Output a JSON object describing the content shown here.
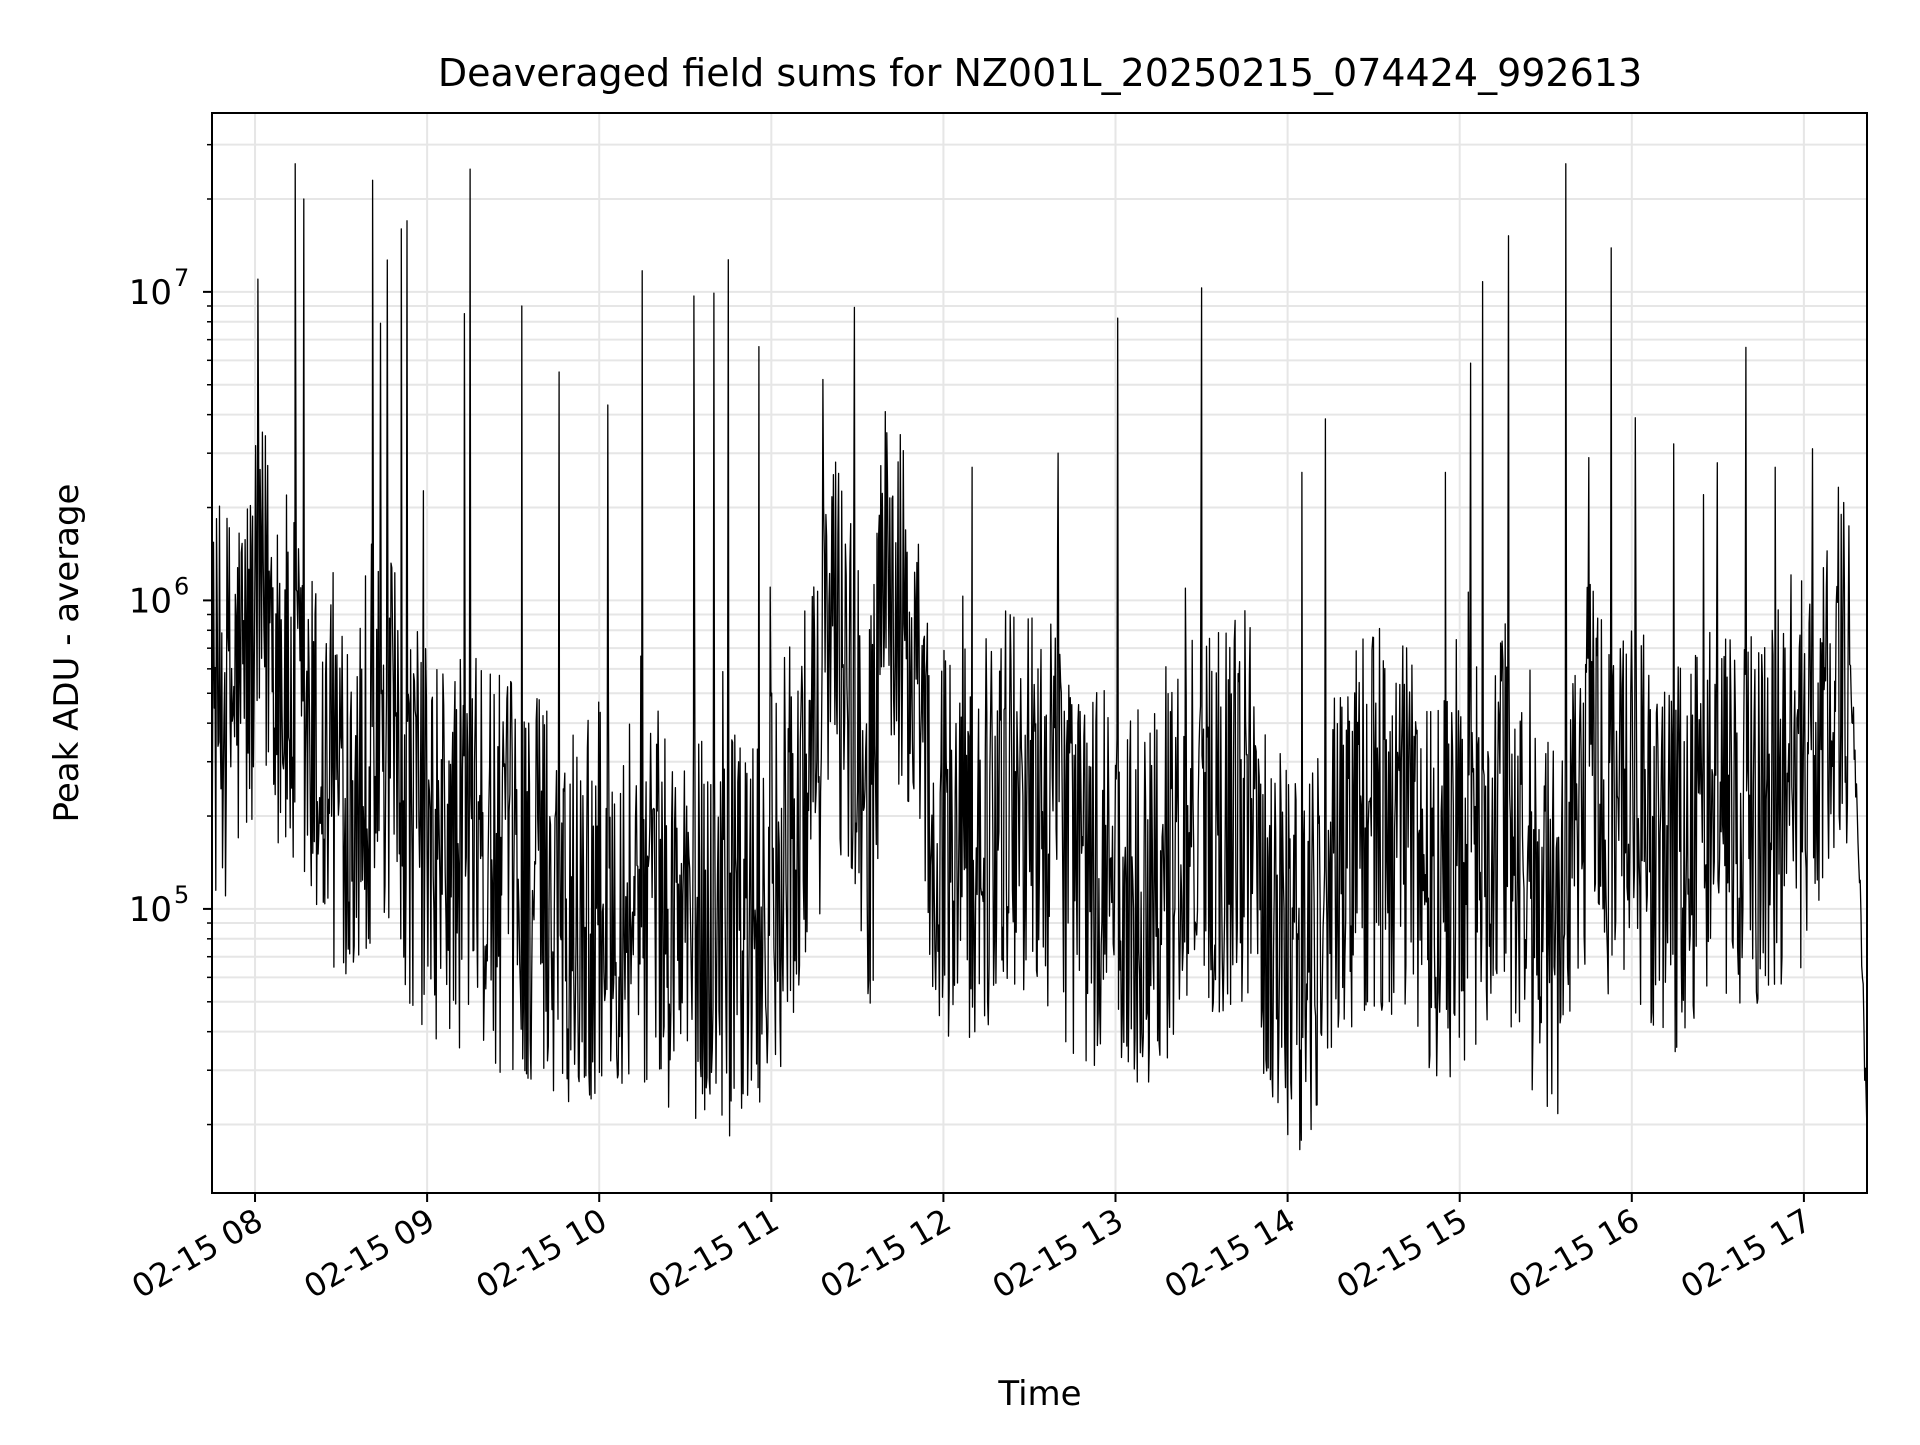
{
  "chart_data": {
    "type": "line",
    "title": "Deaveraged field sums for NZ001L_20250215_074424_992613",
    "xlabel": "Time",
    "ylabel": "Peak ADU - average",
    "xlim": [
      "2025-02-15 07:45",
      "2025-02-15 17:22"
    ],
    "ylim": [
      12000,
      38000000
    ],
    "yscale": "log",
    "grid": true,
    "grid_color": "#e6e6e6",
    "line_color": "#000000",
    "x_ticks": [
      "2025-02-15 08:00",
      "2025-02-15 09:00",
      "2025-02-15 10:00",
      "2025-02-15 11:00",
      "2025-02-15 12:00",
      "2025-02-15 13:00",
      "2025-02-15 14:00",
      "2025-02-15 15:00",
      "2025-02-15 16:00",
      "2025-02-15 17:00"
    ],
    "x_tick_labels": [
      "02-15 08",
      "02-15 09",
      "02-15 10",
      "02-15 11",
      "02-15 12",
      "02-15 13",
      "02-15 14",
      "02-15 15",
      "02-15 16",
      "02-15 17"
    ],
    "y_ticks": [
      100000,
      1000000,
      10000000
    ],
    "y_tick_labels": [
      "10",
      "10",
      "10"
    ],
    "y_tick_exponents": [
      "5",
      "6",
      "7"
    ],
    "series": [
      {
        "x": [
          "2025-02-15 07:45",
          "2025-02-15 07:52",
          "2025-02-15 08:00",
          "2025-02-15 08:05",
          "2025-02-15 08:12",
          "2025-02-15 08:20",
          "2025-02-15 08:28",
          "2025-02-15 08:36",
          "2025-02-15 08:45",
          "2025-02-15 08:55",
          "2025-02-15 09:05",
          "2025-02-15 09:15",
          "2025-02-15 09:25",
          "2025-02-15 09:35",
          "2025-02-15 09:45",
          "2025-02-15 09:55",
          "2025-02-15 10:05",
          "2025-02-15 10:15",
          "2025-02-15 10:25",
          "2025-02-15 10:35",
          "2025-02-15 10:45",
          "2025-02-15 10:55",
          "2025-02-15 11:05",
          "2025-02-15 11:15",
          "2025-02-15 11:20",
          "2025-02-15 11:28",
          "2025-02-15 11:35",
          "2025-02-15 11:40",
          "2025-02-15 11:48",
          "2025-02-15 11:55",
          "2025-02-15 12:05",
          "2025-02-15 12:15",
          "2025-02-15 12:25",
          "2025-02-15 12:35",
          "2025-02-15 12:45",
          "2025-02-15 12:55",
          "2025-02-15 13:05",
          "2025-02-15 13:15",
          "2025-02-15 13:25",
          "2025-02-15 13:35",
          "2025-02-15 13:45",
          "2025-02-15 13:55",
          "2025-02-15 14:05",
          "2025-02-15 14:15",
          "2025-02-15 14:25",
          "2025-02-15 14:35",
          "2025-02-15 14:45",
          "2025-02-15 14:55",
          "2025-02-15 15:05",
          "2025-02-15 15:15",
          "2025-02-15 15:25",
          "2025-02-15 15:35",
          "2025-02-15 15:45",
          "2025-02-15 15:55",
          "2025-02-15 16:05",
          "2025-02-15 16:15",
          "2025-02-15 16:25",
          "2025-02-15 16:35",
          "2025-02-15 16:45",
          "2025-02-15 16:55",
          "2025-02-15 17:05",
          "2025-02-15 17:10",
          "2025-02-15 17:15",
          "2025-02-15 17:18",
          "2025-02-15 17:22"
        ],
        "y": [
          450000,
          480000,
          700000,
          1000000,
          450000,
          300000,
          250000,
          300000,
          350000,
          200000,
          150000,
          150000,
          130000,
          120000,
          110000,
          100000,
          120000,
          110000,
          90000,
          85000,
          80000,
          90000,
          150000,
          250000,
          900000,
          500000,
          200000,
          1500000,
          600000,
          200000,
          150000,
          180000,
          250000,
          220000,
          150000,
          120000,
          110000,
          130000,
          180000,
          200000,
          220000,
          100000,
          60000,
          120000,
          200000,
          180000,
          150000,
          120000,
          150000,
          200000,
          100000,
          80000,
          300000,
          200000,
          180000,
          150000,
          200000,
          180000,
          220000,
          250000,
          350000,
          500000,
          700000,
          300000,
          20000
        ]
      }
    ],
    "spikes": [
      {
        "x": "2025-02-15 08:01",
        "y": 11000000
      },
      {
        "x": "2025-02-15 08:14",
        "y": 26000000
      },
      {
        "x": "2025-02-15 08:17",
        "y": 20000000
      },
      {
        "x": "2025-02-15 08:41",
        "y": 23000000
      },
      {
        "x": "2025-02-15 08:51",
        "y": 16000000
      },
      {
        "x": "2025-02-15 08:53",
        "y": 17000000
      },
      {
        "x": "2025-02-15 09:15",
        "y": 25000000
      },
      {
        "x": "2025-02-15 09:13",
        "y": 8500000
      },
      {
        "x": "2025-02-15 09:33",
        "y": 9000000
      },
      {
        "x": "2025-02-15 09:46",
        "y": 5500000
      },
      {
        "x": "2025-02-15 10:03",
        "y": 4300000
      },
      {
        "x": "2025-02-15 10:15",
        "y": 11700000
      },
      {
        "x": "2025-02-15 10:33",
        "y": 9700000
      },
      {
        "x": "2025-02-15 10:40",
        "y": 9900000
      },
      {
        "x": "2025-02-15 10:45",
        "y": 12700000
      },
      {
        "x": "2025-02-15 11:18",
        "y": 5200000
      },
      {
        "x": "2025-02-15 12:10",
        "y": 2700000
      },
      {
        "x": "2025-02-15 12:40",
        "y": 3000000
      },
      {
        "x": "2025-02-15 13:30",
        "y": 10300000
      },
      {
        "x": "2025-02-15 14:05",
        "y": 2600000
      },
      {
        "x": "2025-02-15 14:55",
        "y": 2600000
      },
      {
        "x": "2025-02-15 15:08",
        "y": 10800000
      },
      {
        "x": "2025-02-15 15:17",
        "y": 15200000
      },
      {
        "x": "2025-02-15 15:37",
        "y": 26000000
      },
      {
        "x": "2025-02-15 15:45",
        "y": 2900000
      },
      {
        "x": "2025-02-15 16:25",
        "y": 2200000
      },
      {
        "x": "2025-02-15 16:50",
        "y": 2700000
      },
      {
        "x": "2025-02-15 17:03",
        "y": 3100000
      },
      {
        "x": "2025-02-15 17:13",
        "y": 1900000
      }
    ]
  }
}
